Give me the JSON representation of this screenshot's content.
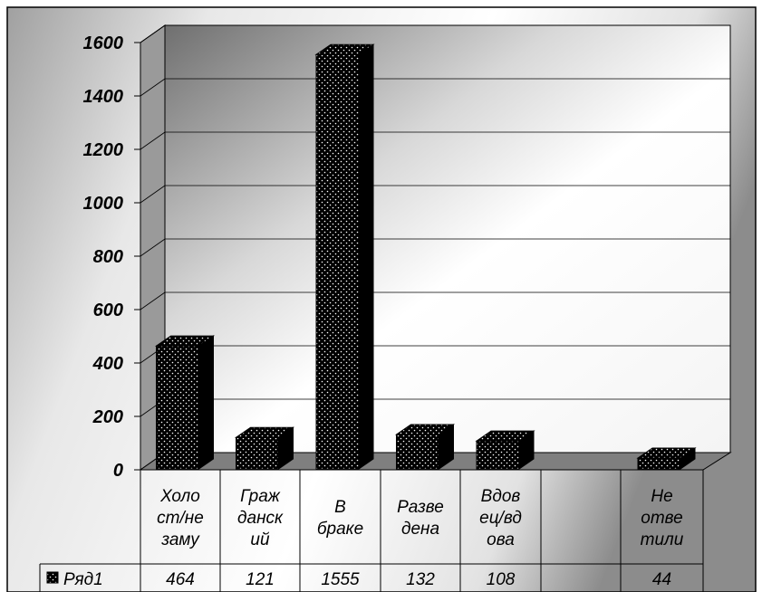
{
  "colors": {
    "bar": "#000000",
    "bar_dots": "#ffffff",
    "floor": "#7f7f7f",
    "gridline": "#000000",
    "frame": "#000000"
  },
  "chart_data": {
    "type": "bar",
    "view": "3d",
    "categories": [
      [
        "Холо",
        "ст/не",
        "заму"
      ],
      [
        "Граж",
        "данск",
        "ий"
      ],
      [
        "В",
        "браке"
      ],
      [
        "Разве",
        "дена"
      ],
      [
        "Вдов",
        "ец/вд",
        "ова"
      ],
      [],
      [
        "Не",
        "отве",
        "тили"
      ]
    ],
    "series": [
      {
        "name": "Ряд1",
        "values": [
          464,
          121,
          1555,
          132,
          108,
          null,
          44
        ]
      }
    ],
    "data_labels": [
      "464",
      "121",
      "1555",
      "132",
      "108",
      "",
      "44"
    ],
    "yticks": [
      "0",
      "200",
      "400",
      "600",
      "800",
      "1000",
      "1200",
      "1400",
      "1600"
    ],
    "ylim": [
      0,
      1600
    ],
    "grid": true,
    "legend": "data-table"
  }
}
